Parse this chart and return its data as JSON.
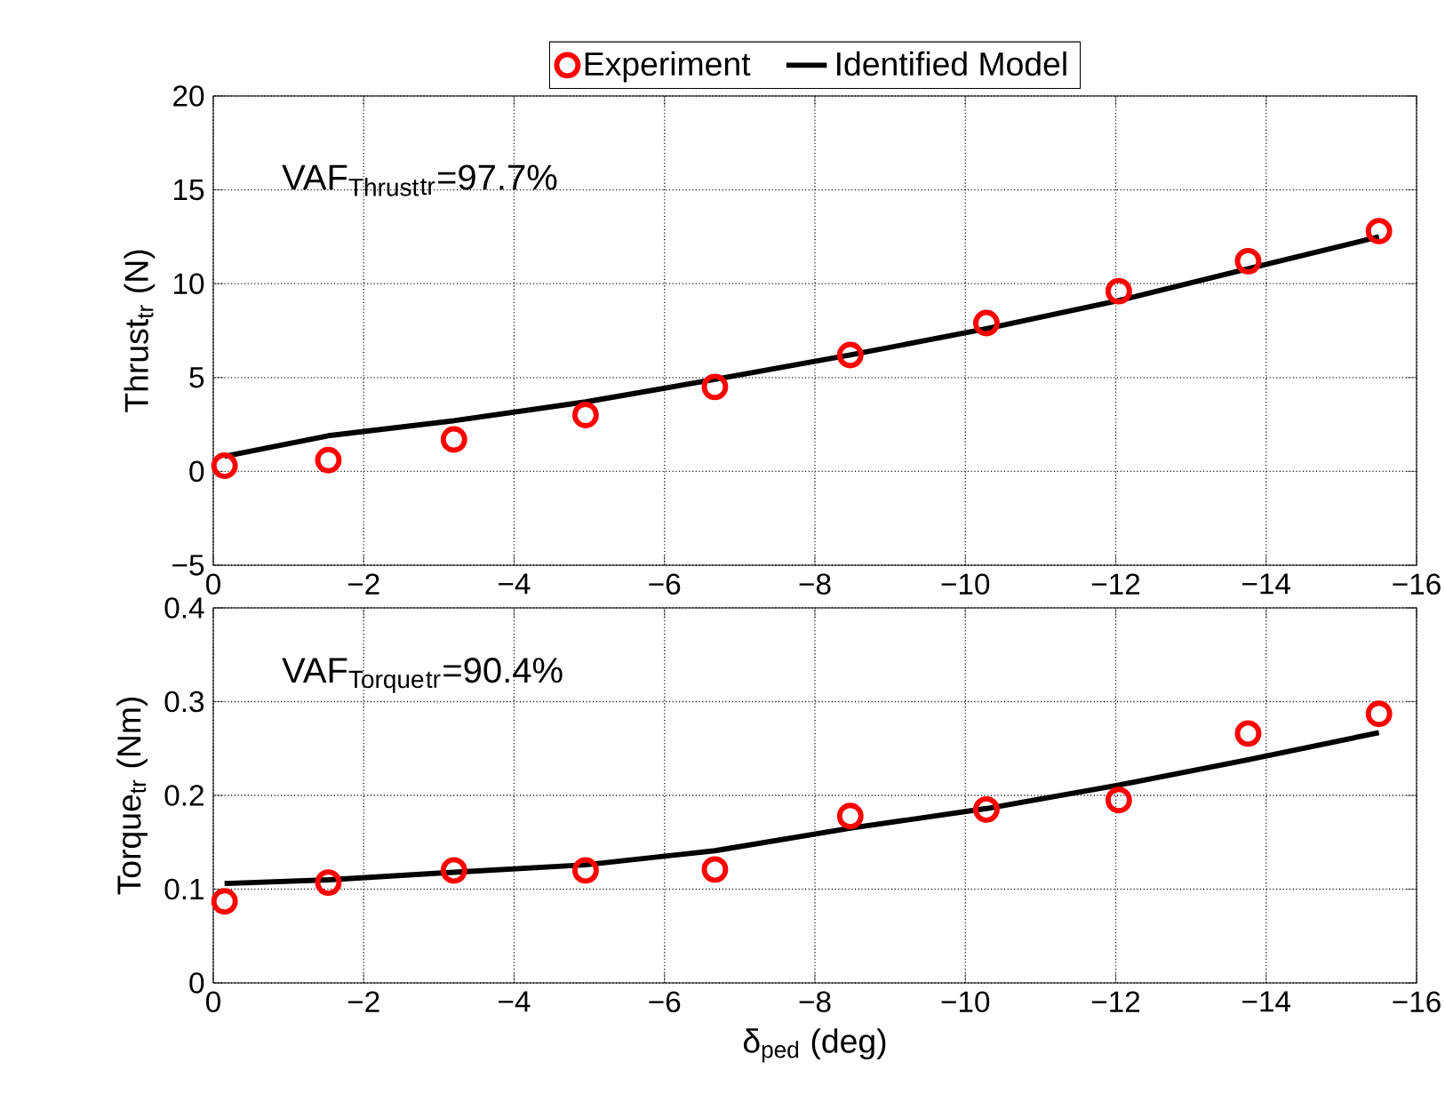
{
  "chart_data": [
    {
      "type": "scatter",
      "ylabel": "Thrust$_{tr}$ (N)",
      "annotations": [
        "VAF$_{Thrust}$$_{tr}$=97.7%"
      ],
      "xlim": [
        0,
        -16
      ],
      "ylim": [
        -5,
        20
      ],
      "xticks": [
        0,
        {
          "value": -2,
          "label": "−2"
        },
        {
          "value": -4,
          "label": "−4"
        },
        {
          "value": -6,
          "label": "−6"
        },
        {
          "value": -8,
          "label": "−8"
        },
        {
          "value": -10,
          "label": "−10"
        },
        {
          "value": -12,
          "label": "−12"
        },
        {
          "value": -14,
          "label": "−14"
        },
        {
          "value": -16,
          "label": "−16"
        }
      ],
      "yticks": [
        {
          "value": -5,
          "label": "−5"
        },
        0,
        5,
        10,
        15,
        20
      ],
      "grid": true,
      "legend": "top",
      "series": [
        {
          "name": "Experiment",
          "marker": "circle",
          "color": "#ff0000",
          "x": [
            -0.15,
            -1.53,
            -3.2,
            -4.95,
            -6.67,
            -8.47,
            -10.28,
            -12.04,
            -13.76,
            -15.5
          ],
          "values": [
            0.3,
            0.6,
            1.7,
            3.0,
            4.5,
            6.2,
            7.9,
            9.6,
            11.2,
            12.8
          ]
        },
        {
          "name": "Identified Model",
          "type": "line",
          "marker": "none",
          "line_style": "solid",
          "color": "#000000",
          "x": [
            -0.15,
            -1.53,
            -3.2,
            -4.95,
            -6.67,
            -8.47,
            -10.28,
            -12.04,
            -13.76,
            -15.5
          ],
          "values": [
            0.8,
            1.9,
            2.7,
            3.7,
            4.9,
            6.2,
            7.6,
            9.1,
            10.8,
            12.5
          ]
        }
      ]
    },
    {
      "type": "scatter",
      "xlabel": "δ$_{ped}$ (deg)",
      "ylabel": "Torque$_{tr}$ (Nm)",
      "annotations": [
        "VAF$_{Torque}$$_{tr}$=90.4%"
      ],
      "xlim": [
        0,
        -16
      ],
      "ylim": [
        0,
        0.4
      ],
      "xticks": [
        0,
        {
          "value": -2,
          "label": "−2"
        },
        {
          "value": -4,
          "label": "−4"
        },
        {
          "value": -6,
          "label": "−6"
        },
        {
          "value": -8,
          "label": "−8"
        },
        {
          "value": -10,
          "label": "−10"
        },
        {
          "value": -12,
          "label": "−12"
        },
        {
          "value": -14,
          "label": "−14"
        },
        {
          "value": -16,
          "label": "−16"
        }
      ],
      "yticks": [
        0,
        0.1,
        0.2,
        0.3,
        0.4
      ],
      "grid": true,
      "series": [
        {
          "marker": "circle",
          "color": "#ff0000",
          "x": [
            -0.15,
            -1.53,
            -3.2,
            -4.95,
            -6.67,
            -8.47,
            -10.28,
            -12.04,
            -13.76,
            -15.5
          ],
          "values": [
            0.087,
            0.107,
            0.12,
            0.12,
            0.121,
            0.178,
            0.185,
            0.195,
            0.266,
            0.287
          ]
        },
        {
          "type": "line",
          "marker": "none",
          "line_style": "solid",
          "color": "#000000",
          "x": [
            -0.15,
            -1.53,
            -3.2,
            -4.95,
            -6.67,
            -8.47,
            -10.28,
            -12.04,
            -13.76,
            -15.5
          ],
          "values": [
            0.106,
            0.11,
            0.118,
            0.126,
            0.141,
            0.165,
            0.186,
            0.211,
            0.238,
            0.267
          ]
        }
      ]
    }
  ]
}
